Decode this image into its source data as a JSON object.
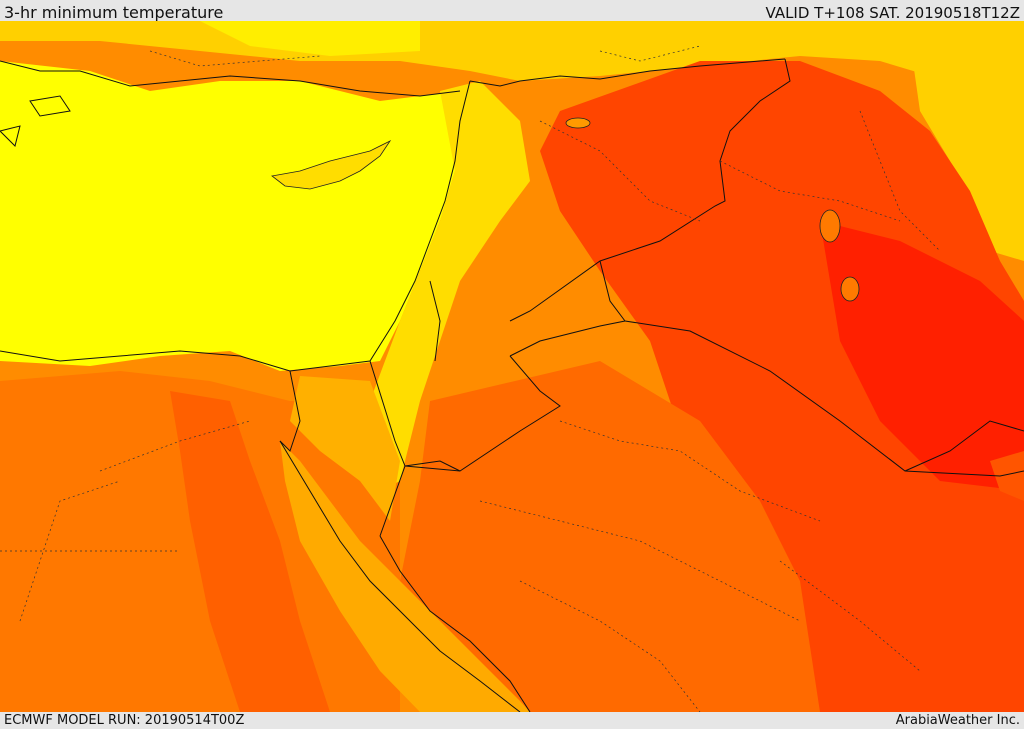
{
  "header": {
    "title": "3-hr minimum temperature",
    "valid": "VALID T+108 SAT. 20190518T12Z"
  },
  "footer": {
    "model_run": "ECMWF MODEL RUN: 20190514T00Z",
    "credit": "ArabiaWeather Inc."
  },
  "palette": {
    "light_yellow": "#ffff00",
    "yellow": "#ffdd00",
    "light_orange": "#ffaa00",
    "orange": "#ff8000",
    "dark_orange": "#ff5a00",
    "red": "#ff3300"
  }
}
